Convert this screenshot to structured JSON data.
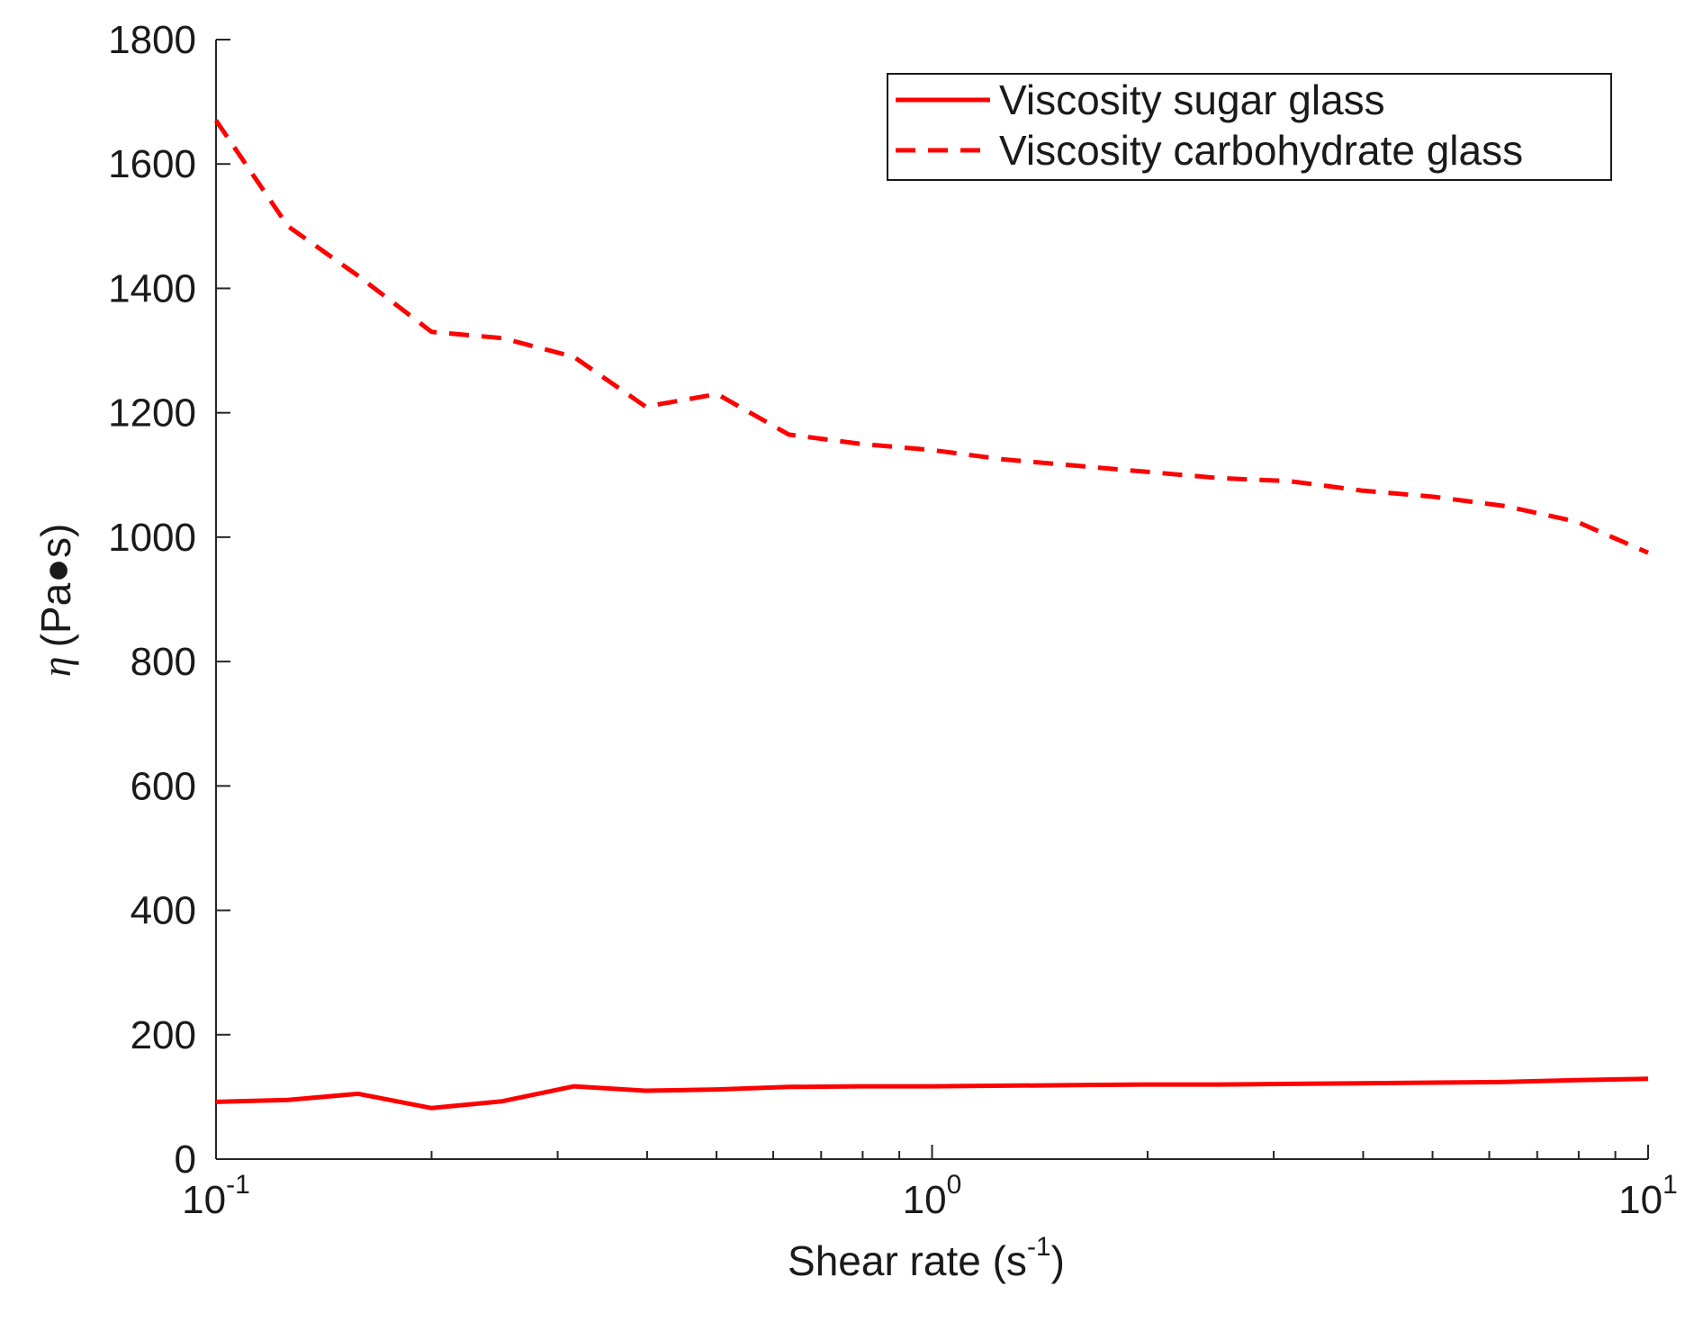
{
  "chart_data": {
    "type": "line",
    "x_scale": "log",
    "y_scale": "linear",
    "xlim": [
      0.1,
      10
    ],
    "ylim": [
      0,
      1800
    ],
    "xlabel": {
      "text": "Shear rate (s",
      "sup": "-1",
      "suffix": ")"
    },
    "ylabel": {
      "symbol": "η",
      "text": "(Pa●s)"
    },
    "yticks": [
      0,
      200,
      400,
      600,
      800,
      1000,
      1200,
      1400,
      1600,
      1800
    ],
    "xticks": [
      {
        "value": 0.1,
        "base": "10",
        "exp": "-1"
      },
      {
        "value": 1,
        "base": "10",
        "exp": "0"
      },
      {
        "value": 10,
        "base": "10",
        "exp": "1"
      }
    ],
    "grid": false,
    "legend_position": "top-right",
    "line_color": "#ff0000",
    "x": [
      0.1,
      0.126,
      0.158,
      0.2,
      0.251,
      0.316,
      0.398,
      0.501,
      0.631,
      0.794,
      1.0,
      1.259,
      1.585,
      1.995,
      2.512,
      3.162,
      3.981,
      5.012,
      6.31,
      7.943,
      10.0
    ],
    "series": [
      {
        "name": "Viscosity sugar glass",
        "style": "solid",
        "values": [
          92,
          95,
          105,
          82,
          93,
          117,
          110,
          112,
          116,
          117,
          117,
          118,
          119,
          120,
          120,
          121,
          122,
          123,
          124,
          127,
          129
        ]
      },
      {
        "name": "Viscosity carbohydrate glass",
        "style": "dashed",
        "values": [
          1670,
          1500,
          1420,
          1330,
          1320,
          1290,
          1210,
          1230,
          1165,
          1150,
          1140,
          1125,
          1115,
          1105,
          1095,
          1090,
          1075,
          1065,
          1050,
          1025,
          975
        ]
      }
    ]
  }
}
